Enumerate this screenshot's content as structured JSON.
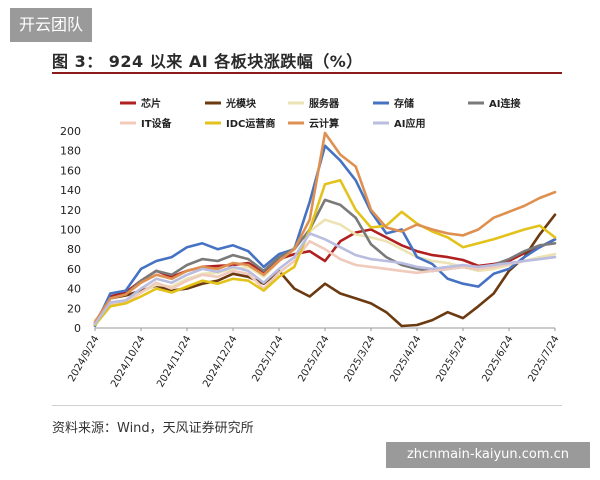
{
  "watermark_top": "开云团队",
  "watermark_bottom": "zhcnmain-kaiyun.com.cn",
  "figure_title": "图 3：  924 以来 AI 各板块涨跌幅（%）",
  "source": "资料来源：Wind，天风证券研究所",
  "chart_data": {
    "type": "line",
    "title": "924 以来 AI 各板块涨跌幅（%）",
    "ylim": [
      0,
      200
    ],
    "yticks": [
      0,
      20,
      40,
      60,
      80,
      100,
      120,
      140,
      160,
      180,
      200
    ],
    "x_ticks": [
      "2024/9/24",
      "2024/10/24",
      "2024/11/24",
      "2024/12/24",
      "2025/1/24",
      "2025/2/24",
      "2025/3/24",
      "2025/4/24",
      "2025/5/24",
      "2025/6/24",
      "2025/7/24"
    ],
    "x_tick_index": [
      0,
      3,
      6,
      9,
      12,
      15,
      18,
      21,
      24,
      27,
      30
    ],
    "x_count": 31,
    "legend_position": "top",
    "grid": false,
    "series": [
      {
        "name": "芯片",
        "color": "#b0201f",
        "values": [
          5,
          32,
          36,
          48,
          58,
          52,
          58,
          62,
          63,
          64,
          66,
          57,
          70,
          75,
          78,
          68,
          88,
          97,
          100,
          92,
          84,
          78,
          74,
          72,
          69,
          63,
          65,
          68,
          76,
          82,
          90
        ]
      },
      {
        "name": "光模块",
        "color": "#6b3a10",
        "values": [
          3,
          30,
          33,
          38,
          43,
          38,
          40,
          45,
          48,
          55,
          52,
          45,
          58,
          40,
          32,
          45,
          35,
          30,
          25,
          16,
          2,
          3,
          8,
          16,
          10,
          22,
          35,
          58,
          72,
          95,
          115
        ]
      },
      {
        "name": "服务器",
        "color": "#ece3b4",
        "values": [
          8,
          22,
          28,
          36,
          44,
          42,
          50,
          55,
          56,
          60,
          62,
          52,
          68,
          82,
          98,
          110,
          105,
          95,
          92,
          88,
          80,
          72,
          68,
          66,
          62,
          58,
          60,
          64,
          68,
          72,
          75
        ]
      },
      {
        "name": "存储",
        "color": "#4672c4",
        "values": [
          2,
          35,
          38,
          60,
          68,
          72,
          82,
          86,
          80,
          84,
          78,
          62,
          75,
          80,
          128,
          185,
          170,
          150,
          118,
          96,
          100,
          72,
          65,
          50,
          45,
          42,
          55,
          60,
          72,
          82,
          90
        ]
      },
      {
        "name": "AI连接",
        "color": "#7a7a7a",
        "values": [
          4,
          30,
          34,
          48,
          58,
          54,
          64,
          70,
          68,
          74,
          70,
          58,
          72,
          80,
          100,
          130,
          125,
          112,
          85,
          72,
          64,
          60,
          58,
          60,
          62,
          60,
          64,
          70,
          78,
          84,
          86
        ]
      },
      {
        "name": "IT设备",
        "color": "#f0cabb",
        "values": [
          5,
          24,
          26,
          36,
          46,
          40,
          48,
          54,
          52,
          58,
          55,
          40,
          56,
          68,
          88,
          80,
          70,
          64,
          62,
          60,
          58,
          56,
          58,
          60,
          62,
          60,
          62,
          65,
          68,
          70,
          72
        ]
      },
      {
        "name": "IDC运营商",
        "color": "#e3c21b",
        "values": [
          3,
          22,
          25,
          32,
          40,
          36,
          42,
          48,
          45,
          50,
          48,
          38,
          52,
          62,
          100,
          146,
          150,
          120,
          102,
          104,
          118,
          106,
          98,
          92,
          82,
          86,
          90,
          95,
          100,
          104,
          92
        ]
      },
      {
        "name": "云计算",
        "color": "#de9050",
        "values": [
          6,
          30,
          34,
          46,
          54,
          50,
          58,
          62,
          60,
          66,
          64,
          54,
          68,
          80,
          110,
          198,
          176,
          164,
          120,
          102,
          98,
          105,
          100,
          96,
          94,
          100,
          112,
          118,
          124,
          132,
          138
        ]
      },
      {
        "name": "AI应用",
        "color": "#b9bde0",
        "values": [
          4,
          26,
          28,
          40,
          50,
          46,
          54,
          60,
          57,
          62,
          58,
          46,
          60,
          72,
          96,
          90,
          82,
          74,
          70,
          68,
          66,
          62,
          60,
          62,
          64,
          62,
          64,
          66,
          68,
          70,
          72
        ]
      }
    ]
  }
}
